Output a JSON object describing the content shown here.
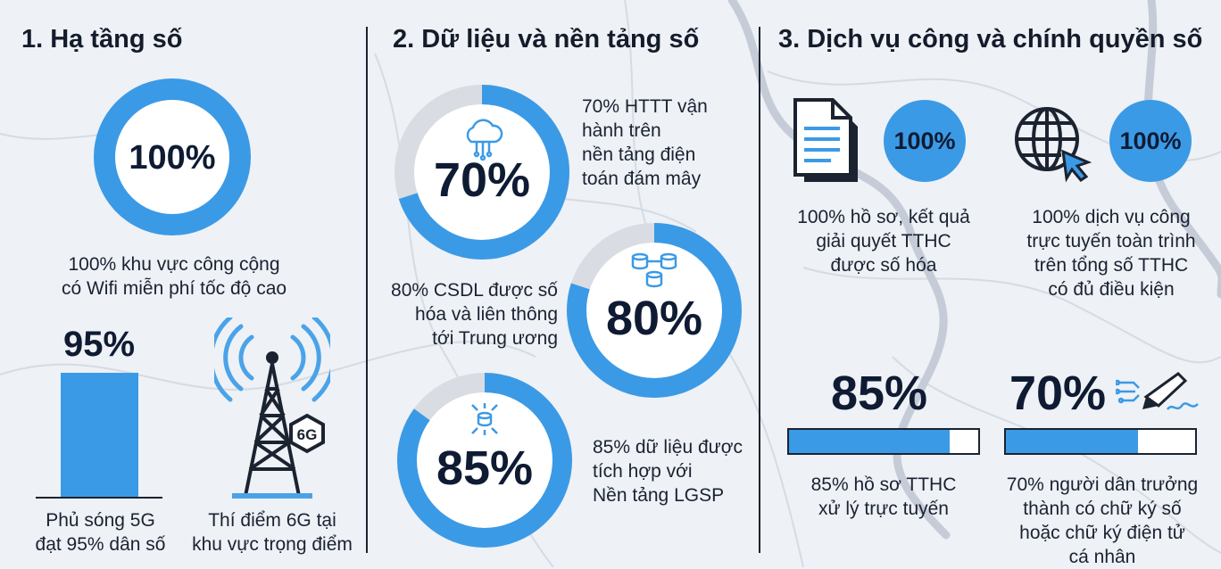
{
  "colors": {
    "accent": "#3b9ae6",
    "track": "#d9dce2",
    "text": "#0f1b33",
    "background": "#eef1f5"
  },
  "section1": {
    "title": "1. Hạ tầng số",
    "wifi": {
      "value": "100%",
      "fraction": 1.0,
      "caption_line1": "100% khu vực công cộng",
      "caption_line2": "có Wifi miễn phí tốc độ cao"
    },
    "coverage5g": {
      "value": "95%",
      "fraction": 0.95,
      "caption_line1": "Phủ sóng 5G",
      "caption_line2": "đạt 95% dân số"
    },
    "pilot6g": {
      "badge": "6G",
      "caption_line1": "Thí điểm 6G tại",
      "caption_line2": "khu vực trọng điểm",
      "icon": "cell-tower-icon"
    }
  },
  "section2": {
    "title": "2. Dữ liệu và nền tảng số",
    "items": [
      {
        "value": "70%",
        "fraction": 0.7,
        "icon": "cloud-computing-icon",
        "lines": [
          "70% HTTT vận",
          "hành trên",
          "nền tảng điện",
          "toán đám mây"
        ]
      },
      {
        "value": "80%",
        "fraction": 0.8,
        "icon": "database-link-icon",
        "lines": [
          "80% CSDL được số",
          "hóa và liên thông",
          "tới Trung ương"
        ]
      },
      {
        "value": "85%",
        "fraction": 0.85,
        "icon": "data-integration-icon",
        "lines": [
          "85% dữ liệu được",
          "tích hợp với",
          "Nền tảng LGSP"
        ]
      }
    ]
  },
  "section3": {
    "title": "3. Dịch vụ công và chính quyền số",
    "digitized": {
      "value": "100%",
      "icon": "document-icon",
      "lines": [
        "100% hồ sơ, kết quả",
        "giải quyết TTHC",
        "được số hóa"
      ]
    },
    "online": {
      "value": "100%",
      "icon": "globe-cursor-icon",
      "lines": [
        "100% dịch vụ công",
        "trực tuyến toàn trình",
        "trên tổng số TTHC",
        "có đủ điều kiện"
      ]
    },
    "online_processing": {
      "value": "85%",
      "fraction": 0.85,
      "lines": [
        "85% hồ sơ TTHC",
        "xử lý trực tuyến"
      ]
    },
    "digital_signature": {
      "value": "70%",
      "fraction": 0.7,
      "icon": "signature-pen-icon",
      "lines": [
        "70% người dân trưởng",
        "thành có chữ ký số",
        "hoặc chữ ký điện tử",
        "cá nhân"
      ]
    }
  }
}
